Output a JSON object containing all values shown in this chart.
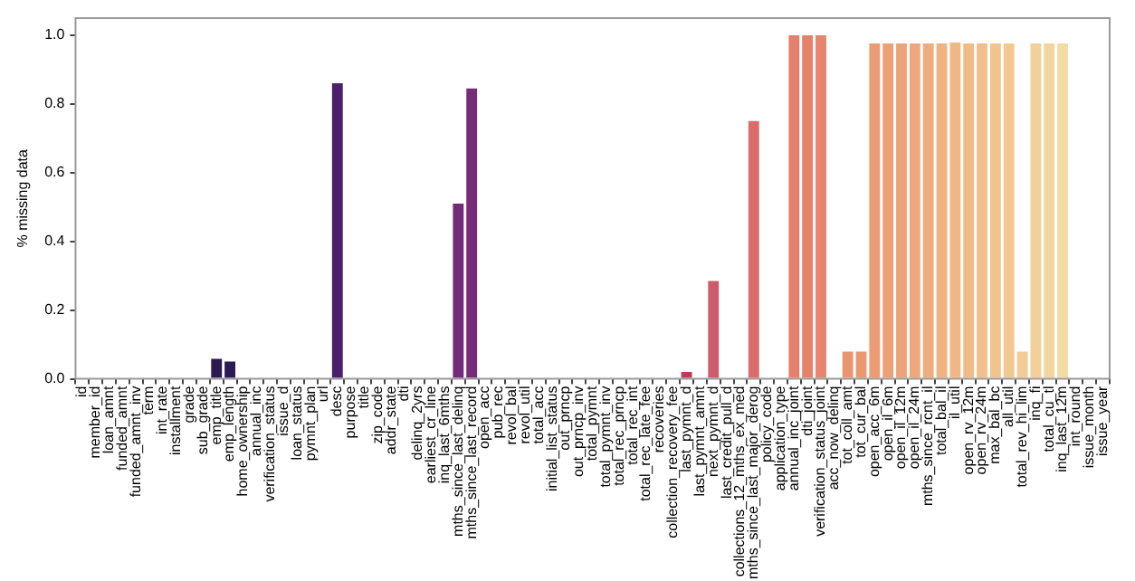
{
  "chart_data": {
    "type": "bar",
    "ylabel": "% missing data",
    "categories": [
      "id",
      "member_id",
      "loan_amnt",
      "funded_amnt",
      "funded_amnt_inv",
      "term",
      "int_rate",
      "installment",
      "grade",
      "sub_grade",
      "emp_title",
      "emp_length",
      "home_ownership",
      "annual_inc",
      "verification_status",
      "issue_d",
      "loan_status",
      "pymnt_plan",
      "url",
      "desc",
      "purpose",
      "title",
      "zip_code",
      "addr_state",
      "dti",
      "delinq_2yrs",
      "earliest_cr_line",
      "inq_last_6mths",
      "mths_since_last_delinq",
      "mths_since_last_record",
      "open_acc",
      "pub_rec",
      "revol_bal",
      "revol_util",
      "total_acc",
      "initial_list_status",
      "out_prncp",
      "out_prncp_inv",
      "total_pymnt",
      "total_pymnt_inv",
      "total_rec_prncp",
      "total_rec_int",
      "total_rec_late_fee",
      "recoveries",
      "collection_recovery_fee",
      "last_pymnt_d",
      "last_pymnt_amnt",
      "next_pymnt_d",
      "last_credit_pull_d",
      "collections_12_mths_ex_med",
      "mths_since_last_major_derog",
      "policy_code",
      "application_type",
      "annual_inc_joint",
      "dti_joint",
      "verification_status_joint",
      "acc_now_delinq",
      "tot_coll_amt",
      "tot_cur_bal",
      "open_acc_6m",
      "open_il_6m",
      "open_il_12m",
      "open_il_24m",
      "mths_since_rcnt_il",
      "total_bal_il",
      "il_util",
      "open_rv_12m",
      "open_rv_24m",
      "max_bal_bc",
      "all_util",
      "total_rev_hi_lim",
      "inq_fi",
      "total_cu_tl",
      "inq_last_12m",
      "int_round",
      "issue_month",
      "issue_year"
    ],
    "values": [
      0,
      0,
      0,
      0,
      0,
      0,
      0,
      0,
      0,
      0,
      0.058,
      0.05,
      0,
      0,
      0,
      0,
      0,
      0,
      0,
      0.86,
      0,
      0,
      0,
      0,
      0,
      0,
      0,
      0,
      0.51,
      0.845,
      0,
      0,
      0,
      0,
      0,
      0,
      0,
      0,
      0,
      0,
      0,
      0,
      0,
      0,
      0,
      0.02,
      0,
      0.285,
      0,
      0,
      0.75,
      0,
      0,
      1.0,
      1.0,
      1.0,
      0,
      0.079,
      0.079,
      0.976,
      0.976,
      0.976,
      0.976,
      0.976,
      0.976,
      0.979,
      0.976,
      0.976,
      0.976,
      0.976,
      0.079,
      0.976,
      0.976,
      0.976,
      0,
      0,
      0
    ],
    "colors": [
      "#0e0b2b",
      "#110d31",
      "#140e37",
      "#170f3d",
      "#1a1043",
      "#1d1148",
      "#20114d",
      "#231151",
      "#261253",
      "#28154f",
      "#2a1a50",
      "#2c1a55",
      "#32165d",
      "#35175f",
      "#381861",
      "#3b1962",
      "#3e1a64",
      "#411b66",
      "#441c67",
      "#4b1f6b",
      "#4d1f6b",
      "#51206c",
      "#54216d",
      "#57226e",
      "#5a236f",
      "#5d2470",
      "#602570",
      "#632671",
      "#722b77",
      "#772c79",
      "#7e2e72",
      "#822f72",
      "#853071",
      "#893171",
      "#8c3270",
      "#90336f",
      "#93346e",
      "#97356d",
      "#9a366c",
      "#9e376b",
      "#a1386a",
      "#a53968",
      "#a83a67",
      "#ac3b65",
      "#af3d63",
      "#c0395b",
      "#c4485f",
      "#cc5c6c",
      "#d2606c",
      "#d6646c",
      "#dc6b6b",
      "#df706b",
      "#e2766b",
      "#e5806c",
      "#e5826c",
      "#e6846d",
      "#e88b6e",
      "#e99670",
      "#ea9872",
      "#ec9c74",
      "#ed9f76",
      "#eea378",
      "#efa87b",
      "#efad7e",
      "#f0b281",
      "#f0b784",
      "#f1bb87",
      "#f1c08a",
      "#f1c48d",
      "#f2c890",
      "#f2cc96",
      "#f3d09b",
      "#f3d5a0",
      "#f3dba5",
      "#f4dfaa",
      "#f5e2ae",
      "#f6e6b2"
    ],
    "ylim": [
      0,
      1.05
    ],
    "yticks": [
      {
        "value": 0,
        "label": "0.0"
      },
      {
        "value": 0.2,
        "label": "0.2"
      },
      {
        "value": 0.4,
        "label": "0.4"
      },
      {
        "value": 0.6,
        "label": "0.6"
      },
      {
        "value": 0.8,
        "label": "0.8"
      },
      {
        "value": 1.0,
        "label": "1.0"
      }
    ],
    "grid": false,
    "legend": false
  }
}
